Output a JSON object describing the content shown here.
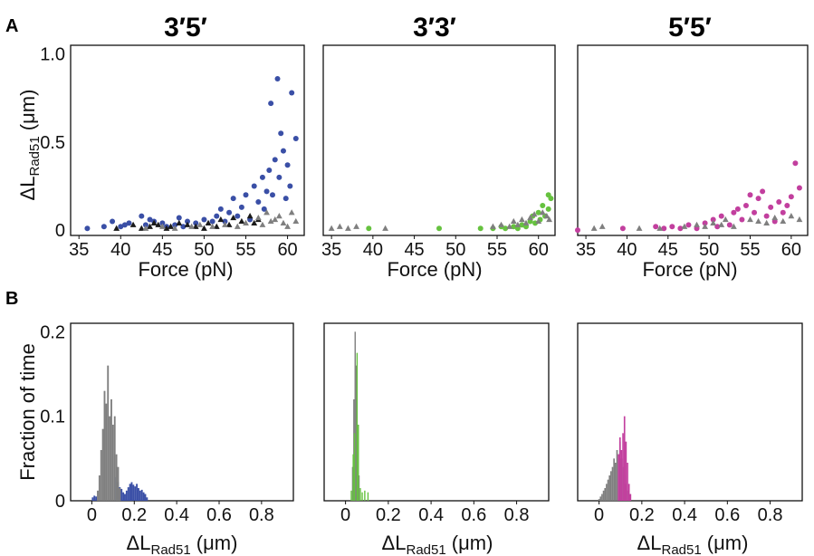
{
  "figure": {
    "panel_labels": [
      "A",
      "B"
    ],
    "column_titles": [
      "3′5′",
      "3′3′",
      "5′5′"
    ],
    "scatter_xlabel": "Force (pN)",
    "scatter_ylabel_main": "ΔL",
    "scatter_ylabel_sub": "Rad51",
    "scatter_ylabel_unit": " (μm)",
    "hist_ylabel": "Fraction of time",
    "hist_xlabel_main": "ΔL",
    "hist_xlabel_sub": "Rad51",
    "hist_xlabel_unit": " (μm)"
  },
  "colors": {
    "blue": "#3a4fa6",
    "green": "#66c23f",
    "magenta": "#c23f9e",
    "gray": "#7f7f7f",
    "black": "#1a1a1a"
  },
  "chart_data": [
    {
      "id": "A-3'5'",
      "type": "scatter",
      "title": "3′5′",
      "xlabel": "Force (pN)",
      "ylabel": "ΔL Rad51 (μm)",
      "xlim": [
        34,
        62
      ],
      "ylim": [
        -0.03,
        1.05
      ],
      "xticks": [
        35,
        40,
        45,
        50,
        55,
        60
      ],
      "yticks": [
        0,
        0.5,
        1.0
      ],
      "ytick_labels": [
        "0",
        "0.5",
        "1.0"
      ],
      "series": [
        {
          "color": "#3a4fa6",
          "marker": "circle",
          "points": [
            [
              36,
              0.01
            ],
            [
              38,
              0.02
            ],
            [
              39,
              0.05
            ],
            [
              40,
              0.02
            ],
            [
              40.5,
              0.03
            ],
            [
              41,
              0.04
            ],
            [
              42.5,
              0.08
            ],
            [
              43,
              0.03
            ],
            [
              43.5,
              0.06
            ],
            [
              44,
              0.05
            ],
            [
              45,
              0.04
            ],
            [
              45.5,
              0.02
            ],
            [
              46.5,
              0.03
            ],
            [
              47,
              0.07
            ],
            [
              47.5,
              0.02
            ],
            [
              48,
              0.05
            ],
            [
              49,
              0.04
            ],
            [
              50,
              0.06
            ],
            [
              51,
              0.05
            ],
            [
              51.5,
              0.08
            ],
            [
              52,
              0.12
            ],
            [
              52.5,
              0.05
            ],
            [
              53,
              0.1
            ],
            [
              53.5,
              0.18
            ],
            [
              54,
              0.08
            ],
            [
              54.5,
              0.13
            ],
            [
              55,
              0.2
            ],
            [
              55.5,
              0.06
            ],
            [
              56,
              0.25
            ],
            [
              56.5,
              0.16
            ],
            [
              57,
              0.3
            ],
            [
              57.2,
              0.12
            ],
            [
              57.5,
              0.22
            ],
            [
              57.8,
              0.34
            ],
            [
              58,
              0.72
            ],
            [
              58.2,
              0.2
            ],
            [
              58.5,
              0.4
            ],
            [
              58.8,
              0.86
            ],
            [
              59,
              0.3
            ],
            [
              59.2,
              0.55
            ],
            [
              59.5,
              0.45
            ],
            [
              59.8,
              0.18
            ],
            [
              60,
              0.37
            ],
            [
              60.3,
              0.25
            ],
            [
              60.5,
              0.78
            ],
            [
              61,
              0.52
            ]
          ]
        },
        {
          "color": "#1a1a1a",
          "marker": "triangle",
          "points": [
            [
              39.5,
              0.01
            ],
            [
              41.5,
              0.03
            ],
            [
              42.5,
              0.01
            ],
            [
              43.5,
              0.02
            ],
            [
              44,
              0.04
            ],
            [
              44.5,
              0.03
            ],
            [
              45.5,
              0.01
            ],
            [
              46,
              0.02
            ],
            [
              47,
              0.04
            ],
            [
              48,
              0.03
            ],
            [
              49,
              0.02
            ],
            [
              50,
              0.01
            ],
            [
              50.5,
              0.04
            ],
            [
              51.5,
              0.02
            ],
            [
              52,
              0.06
            ],
            [
              53,
              0.03
            ],
            [
              53.5,
              0.07
            ],
            [
              54.5,
              0.05
            ],
            [
              55.5,
              0.08
            ],
            [
              56,
              0.04
            ],
            [
              56.5,
              0.06
            ]
          ]
        },
        {
          "color": "#7f7f7f",
          "marker": "triangle",
          "points": [
            [
              43,
              0.01
            ],
            [
              45,
              0.02
            ],
            [
              46.5,
              0.01
            ],
            [
              48.5,
              0.02
            ],
            [
              49.5,
              0.03
            ],
            [
              51,
              0.02
            ],
            [
              52.5,
              0.03
            ],
            [
              54,
              0.02
            ],
            [
              55,
              0.04
            ],
            [
              56.5,
              0.07
            ],
            [
              57,
              0.03
            ],
            [
              57.5,
              0.1
            ],
            [
              58,
              0.05
            ],
            [
              58.5,
              0.06
            ],
            [
              59,
              0.08
            ],
            [
              59.5,
              0.04
            ],
            [
              60,
              0.02
            ],
            [
              60.5,
              0.1
            ],
            [
              61,
              0.05
            ]
          ]
        }
      ]
    },
    {
      "id": "A-3'3'",
      "type": "scatter",
      "title": "3′3′",
      "xlabel": "Force (pN)",
      "ylabel": "",
      "xlim": [
        34,
        62
      ],
      "ylim": [
        -0.03,
        1.05
      ],
      "xticks": [
        35,
        40,
        45,
        50,
        55,
        60
      ],
      "yticks": [],
      "ytick_labels": [],
      "series": [
        {
          "color": "#66c23f",
          "marker": "circle",
          "points": [
            [
              39.5,
              0.01
            ],
            [
              48,
              0.01
            ],
            [
              53,
              0.01
            ],
            [
              54.5,
              0.01
            ],
            [
              55.5,
              0.02
            ],
            [
              56,
              0.01
            ],
            [
              57,
              0.02
            ],
            [
              57.5,
              0.01
            ],
            [
              58,
              0.03
            ],
            [
              58.5,
              0.02
            ],
            [
              59,
              0.05
            ],
            [
              59.3,
              0.08
            ],
            [
              59.6,
              0.04
            ],
            [
              60,
              0.1
            ],
            [
              60.2,
              0.06
            ],
            [
              60.5,
              0.14
            ],
            [
              60.8,
              0.08
            ],
            [
              61.2,
              0.12
            ],
            [
              61.5,
              0.18
            ],
            [
              61.2,
              0.2
            ]
          ]
        },
        {
          "color": "#7f7f7f",
          "marker": "triangle",
          "points": [
            [
              35,
              0.01
            ],
            [
              36,
              0.02
            ],
            [
              37,
              0.01
            ],
            [
              38,
              0.02
            ],
            [
              41.5,
              0.01
            ],
            [
              54.5,
              0.02
            ],
            [
              55.5,
              0.03
            ],
            [
              56.5,
              0.02
            ],
            [
              57,
              0.05
            ],
            [
              57.5,
              0.03
            ],
            [
              58,
              0.06
            ],
            [
              58.5,
              0.04
            ],
            [
              59,
              0.07
            ],
            [
              59.5,
              0.09
            ],
            [
              60,
              0.05
            ],
            [
              60.5,
              0.1
            ],
            [
              61,
              0.08
            ],
            [
              61.3,
              0.06
            ]
          ]
        }
      ]
    },
    {
      "id": "A-5'5'",
      "type": "scatter",
      "title": "5′5′",
      "xlabel": "Force (pN)",
      "ylabel": "",
      "xlim": [
        34,
        62
      ],
      "ylim": [
        -0.03,
        1.05
      ],
      "xticks": [
        35,
        40,
        45,
        50,
        55,
        60
      ],
      "yticks": [],
      "ytick_labels": [],
      "series": [
        {
          "color": "#c23f9e",
          "marker": "circle",
          "points": [
            [
              34,
              0.0
            ],
            [
              39.5,
              0.01
            ],
            [
              43.5,
              0.02
            ],
            [
              44.5,
              0.01
            ],
            [
              45.5,
              0.02
            ],
            [
              46.5,
              0.01
            ],
            [
              47.5,
              0.03
            ],
            [
              48.5,
              0.01
            ],
            [
              49.5,
              0.04
            ],
            [
              50.5,
              0.06
            ],
            [
              51,
              0.02
            ],
            [
              51.5,
              0.08
            ],
            [
              52.5,
              0.03
            ],
            [
              53,
              0.1
            ],
            [
              53.5,
              0.12
            ],
            [
              54,
              0.06
            ],
            [
              54.5,
              0.14
            ],
            [
              55,
              0.2
            ],
            [
              55.5,
              0.1
            ],
            [
              56,
              0.18
            ],
            [
              56.5,
              0.22
            ],
            [
              57,
              0.08
            ],
            [
              57.5,
              0.13
            ],
            [
              58,
              0.05
            ],
            [
              58.5,
              0.16
            ],
            [
              59,
              0.1
            ],
            [
              59.5,
              0.14
            ],
            [
              60,
              0.19
            ],
            [
              60.5,
              0.38
            ],
            [
              61,
              0.24
            ]
          ]
        },
        {
          "color": "#7f7f7f",
          "marker": "triangle",
          "points": [
            [
              36,
              0.01
            ],
            [
              37,
              0.02
            ],
            [
              41.5,
              0.01
            ],
            [
              44,
              0.01
            ],
            [
              47,
              0.02
            ],
            [
              48.5,
              0.03
            ],
            [
              49.5,
              0.02
            ],
            [
              50.5,
              0.04
            ],
            [
              51.5,
              0.03
            ],
            [
              52,
              0.06
            ],
            [
              53,
              0.02
            ],
            [
              55,
              0.06
            ],
            [
              56,
              0.05
            ],
            [
              57,
              0.04
            ],
            [
              58,
              0.07
            ],
            [
              59,
              0.05
            ],
            [
              60,
              0.08
            ],
            [
              61,
              0.06
            ]
          ]
        }
      ]
    },
    {
      "id": "B-3'5'",
      "type": "bar",
      "xlabel": "ΔL Rad51 (μm)",
      "ylabel": "Fraction of time",
      "xlim": [
        -0.1,
        0.95
      ],
      "ylim": [
        0,
        0.21
      ],
      "xticks": [
        0,
        0.2,
        0.4,
        0.6,
        0.8
      ],
      "xtick_labels": [
        "0",
        "0.2",
        "0.4",
        "0.6",
        "0.8"
      ],
      "yticks": [
        0,
        0.1,
        0.2
      ],
      "ytick_labels": [
        "0",
        "0.1",
        "0.2"
      ],
      "bin_width": 0.008,
      "series": [
        {
          "color": "#3a4fa6",
          "x": [
            0.004,
            0.012,
            0.02,
            0.116,
            0.124,
            0.132,
            0.14,
            0.148,
            0.156,
            0.164,
            0.172,
            0.18,
            0.188,
            0.196,
            0.204,
            0.212,
            0.22,
            0.228,
            0.236,
            0.244,
            0.252,
            0.26
          ],
          "values": [
            0.004,
            0.006,
            0.005,
            0.028,
            0.022,
            0.016,
            0.014,
            0.01,
            0.008,
            0.012,
            0.016,
            0.02,
            0.022,
            0.019,
            0.017,
            0.02,
            0.015,
            0.012,
            0.013,
            0.01,
            0.008,
            0.004
          ]
        },
        {
          "color": "#7f7f7f",
          "x": [
            0.028,
            0.036,
            0.044,
            0.052,
            0.06,
            0.068,
            0.076,
            0.084,
            0.092,
            0.1,
            0.108,
            0.116,
            0.124,
            0.132
          ],
          "values": [
            0.012,
            0.03,
            0.06,
            0.085,
            0.13,
            0.115,
            0.16,
            0.1,
            0.12,
            0.09,
            0.1,
            0.055,
            0.04,
            0.015
          ]
        }
      ]
    },
    {
      "id": "B-3'3'",
      "type": "bar",
      "xlabel": "ΔL Rad51 (μm)",
      "ylabel": "",
      "xlim": [
        -0.1,
        0.95
      ],
      "ylim": [
        0,
        0.21
      ],
      "xticks": [
        0,
        0.2,
        0.4,
        0.6,
        0.8
      ],
      "xtick_labels": [
        "0",
        "0.2",
        "0.4",
        "0.6",
        "0.8"
      ],
      "yticks": [],
      "ytick_labels": [],
      "bin_width": 0.006,
      "series": [
        {
          "color": "#7f7f7f",
          "x": [
            0.033,
            0.039,
            0.045,
            0.051,
            0.057,
            0.063
          ],
          "values": [
            0.04,
            0.12,
            0.2,
            0.16,
            0.09,
            0.03
          ]
        },
        {
          "color": "#66c23f",
          "x": [
            0.027,
            0.036,
            0.042,
            0.054,
            0.06,
            0.069,
            0.078,
            0.09,
            0.105
          ],
          "values": [
            0.012,
            0.055,
            0.08,
            0.175,
            0.09,
            0.015,
            0.01,
            0.012,
            0.01
          ]
        }
      ]
    },
    {
      "id": "B-5'5'",
      "type": "bar",
      "xlabel": "ΔL Rad51 (μm)",
      "ylabel": "",
      "xlim": [
        -0.1,
        0.95
      ],
      "ylim": [
        0,
        0.21
      ],
      "xticks": [
        0,
        0.2,
        0.4,
        0.6,
        0.8
      ],
      "xtick_labels": [
        "0",
        "0.2",
        "0.4",
        "0.6",
        "0.8"
      ],
      "yticks": [],
      "ytick_labels": [],
      "bin_width": 0.007,
      "series": [
        {
          "color": "#7f7f7f",
          "x": [
            0.0,
            0.007,
            0.014,
            0.021,
            0.028,
            0.035,
            0.042,
            0.049,
            0.056,
            0.063,
            0.07,
            0.077,
            0.084,
            0.091,
            0.098,
            0.105,
            0.112,
            0.119,
            0.126,
            0.133,
            0.14
          ],
          "values": [
            0.002,
            0.005,
            0.008,
            0.012,
            0.015,
            0.02,
            0.025,
            0.03,
            0.035,
            0.04,
            0.05,
            0.045,
            0.06,
            0.055,
            0.07,
            0.05,
            0.04,
            0.03,
            0.02,
            0.012,
            0.006
          ]
        },
        {
          "color": "#c23f9e",
          "x": [
            0.091,
            0.098,
            0.105,
            0.112,
            0.119,
            0.126,
            0.133,
            0.14,
            0.147
          ],
          "values": [
            0.055,
            0.075,
            0.06,
            0.08,
            0.1,
            0.07,
            0.045,
            0.02,
            0.008
          ]
        }
      ]
    }
  ]
}
